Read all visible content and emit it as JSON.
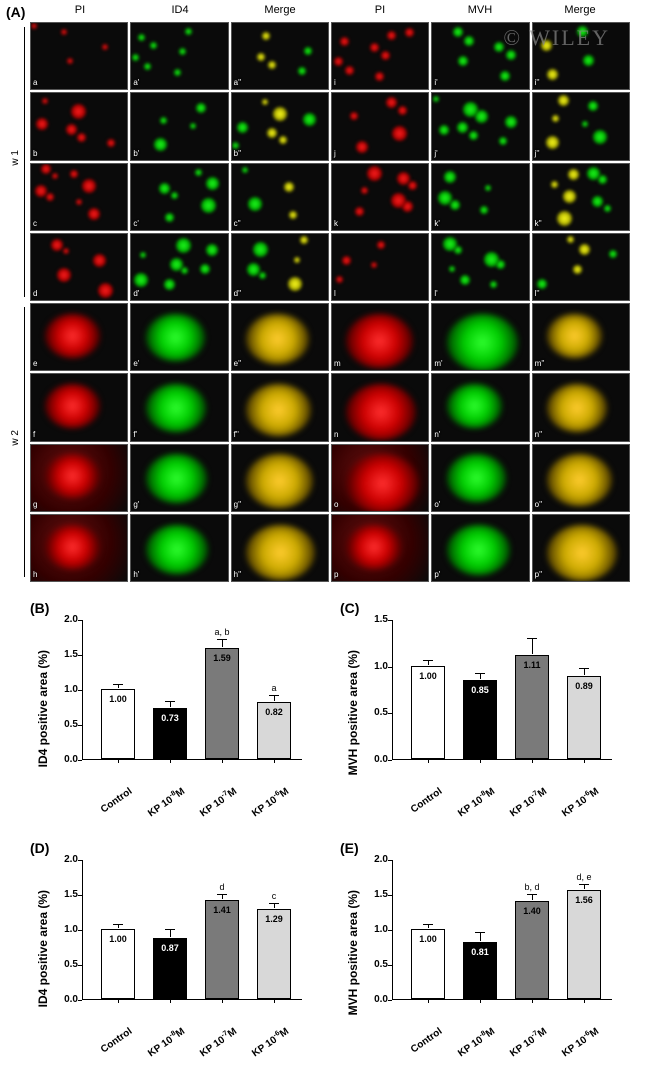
{
  "watermark": "© WILEY",
  "panel_labels": {
    "A": "(A)",
    "B": "(B)",
    "C": "(C)",
    "D": "(D)",
    "E": "(E)"
  },
  "col_headers": [
    "PI",
    "ID4",
    "Merge",
    "PI",
    "MVH",
    "Merge"
  ],
  "row_groups": [
    {
      "label": "w 1"
    },
    {
      "label": "w 2"
    }
  ],
  "micro_grid": {
    "rows": 8,
    "cols": 6,
    "row_letters_left": [
      "a",
      "b",
      "c",
      "d",
      "e",
      "f",
      "g",
      "h"
    ],
    "row_letters_right": [
      "i",
      "j",
      "k",
      "l",
      "m",
      "n",
      "o",
      "p"
    ],
    "col_suffix": [
      "",
      "'",
      "''",
      "",
      "'",
      "''"
    ]
  },
  "charts": {
    "B": {
      "ylabel": "ID4 positive area (%)",
      "ymax": 2.0,
      "ytick_step": 0.5,
      "bars": [
        {
          "label": "Control",
          "value": 1.0,
          "err": 0.05,
          "fill": "#ffffff",
          "text_inside": "1.00",
          "sig": ""
        },
        {
          "label": "KP 10⁻⁸M",
          "value": 0.73,
          "err": 0.07,
          "fill": "#000000",
          "text_inside": "0.73",
          "sig": "",
          "text_color": "#fff"
        },
        {
          "label": "KP 10⁻⁷M",
          "value": 1.59,
          "err": 0.1,
          "fill": "#7a7a7a",
          "text_inside": "1.59",
          "sig": "a, b"
        },
        {
          "label": "KP 10⁻⁶M",
          "value": 0.82,
          "err": 0.06,
          "fill": "#d8d8d8",
          "text_inside": "0.82",
          "sig": "a"
        }
      ]
    },
    "C": {
      "ylabel": "MVH positive area (%)",
      "ymax": 1.5,
      "ytick_step": 0.5,
      "bars": [
        {
          "label": "Control",
          "value": 1.0,
          "err": 0.04,
          "fill": "#ffffff",
          "text_inside": "1.00",
          "sig": ""
        },
        {
          "label": "KP 10⁻⁸M",
          "value": 0.85,
          "err": 0.05,
          "fill": "#000000",
          "text_inside": "0.85",
          "sig": "",
          "text_color": "#fff"
        },
        {
          "label": "KP 10⁻⁷M",
          "value": 1.11,
          "err": 0.17,
          "fill": "#7a7a7a",
          "text_inside": "1.11",
          "sig": ""
        },
        {
          "label": "KP 10⁻⁶M",
          "value": 0.89,
          "err": 0.06,
          "fill": "#d8d8d8",
          "text_inside": "0.89",
          "sig": ""
        }
      ]
    },
    "D": {
      "ylabel": "ID4 positive area (%)",
      "ymax": 2.0,
      "ytick_step": 0.5,
      "bars": [
        {
          "label": "Control",
          "value": 1.0,
          "err": 0.05,
          "fill": "#ffffff",
          "text_inside": "1.00",
          "sig": ""
        },
        {
          "label": "KP 10⁻⁸M",
          "value": 0.87,
          "err": 0.1,
          "fill": "#000000",
          "text_inside": "0.87",
          "sig": "",
          "text_color": "#fff"
        },
        {
          "label": "KP 10⁻⁷M",
          "value": 1.41,
          "err": 0.06,
          "fill": "#7a7a7a",
          "text_inside": "1.41",
          "sig": "d"
        },
        {
          "label": "KP 10⁻⁶M",
          "value": 1.29,
          "err": 0.05,
          "fill": "#d8d8d8",
          "text_inside": "1.29",
          "sig": "c"
        }
      ]
    },
    "E": {
      "ylabel": "MVH positive area (%)",
      "ymax": 2.0,
      "ytick_step": 0.5,
      "bars": [
        {
          "label": "Control",
          "value": 1.0,
          "err": 0.05,
          "fill": "#ffffff",
          "text_inside": "1.00",
          "sig": ""
        },
        {
          "label": "KP 10⁻⁸M",
          "value": 0.81,
          "err": 0.12,
          "fill": "#000000",
          "text_inside": "0.81",
          "sig": "",
          "text_color": "#fff"
        },
        {
          "label": "KP 10⁻⁷M",
          "value": 1.4,
          "err": 0.07,
          "fill": "#7a7a7a",
          "text_inside": "1.40",
          "sig": "b, d"
        },
        {
          "label": "KP 10⁻⁶M",
          "value": 1.56,
          "err": 0.06,
          "fill": "#d8d8d8",
          "text_inside": "1.56",
          "sig": "d, e"
        }
      ]
    }
  },
  "colors": {
    "bar_border": "#000000",
    "axis": "#000000",
    "background": "#ffffff"
  }
}
